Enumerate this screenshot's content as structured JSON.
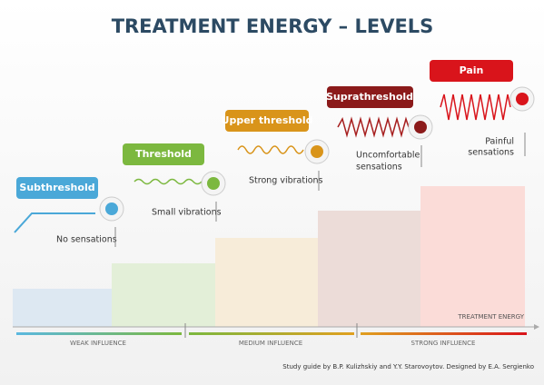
{
  "title": "TREATMENT ENERGY – LEVELS",
  "levels": [
    {
      "label": "Subthreshold",
      "description": [
        "No sensations"
      ]
    },
    {
      "label": "Threshold",
      "description": [
        "Small vibrations"
      ]
    },
    {
      "label": "Upper threshold",
      "description": [
        "Strong vibrations"
      ]
    },
    {
      "label": "Suprathreshold",
      "description": [
        "Uncomfortable",
        "sensations"
      ]
    },
    {
      "label": "Pain",
      "description": [
        "Painful",
        "sensations"
      ]
    }
  ],
  "axis": {
    "label": "TREATMENT ENERGY",
    "influences": [
      "WEAK INFLUENCE",
      "MEDIUM INFLUENCE",
      "STRONG INFLUENCE"
    ]
  },
  "credit": "Study guide by B.P. Kulizhskiy and Y.Y. Starovoytov. Designed by E.A. Sergienko"
}
